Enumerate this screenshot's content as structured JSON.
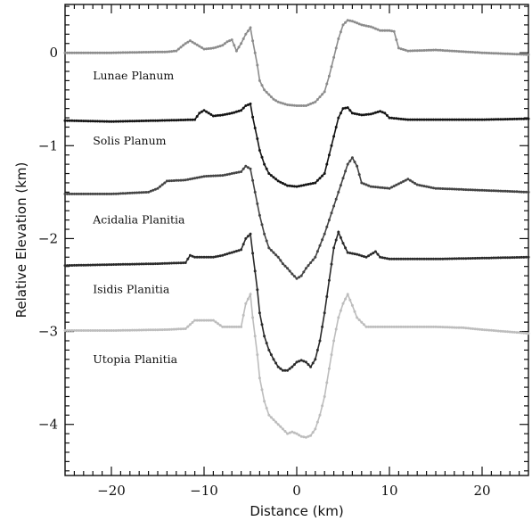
{
  "chart_data": {
    "type": "line",
    "xlabel": "Distance (km)",
    "ylabel": "Relative Elevation (km)",
    "xlim": [
      -25,
      25
    ],
    "ylim": [
      -4.55,
      0.52
    ],
    "xticks": [
      -20,
      -10,
      0,
      10,
      20
    ],
    "yticks": [
      0,
      -1,
      -2,
      -3,
      -4
    ],
    "xtick_labels": [
      "−20",
      "−10",
      "0",
      "10",
      "20"
    ],
    "ytick_labels": [
      "0",
      "−1",
      "−2",
      "−3",
      "−4"
    ],
    "grid": false,
    "series": [
      {
        "name": "Lunae Planum",
        "color": "#8c8c8c",
        "label_at": [
          -22,
          -0.25
        ],
        "points": [
          [
            -25,
            0.0
          ],
          [
            -20,
            0.0
          ],
          [
            -14,
            0.01
          ],
          [
            -13,
            0.02
          ],
          [
            -12,
            0.1
          ],
          [
            -11.5,
            0.13
          ],
          [
            -11,
            0.1
          ],
          [
            -10,
            0.04
          ],
          [
            -9,
            0.05
          ],
          [
            -8,
            0.08
          ],
          [
            -7.5,
            0.12
          ],
          [
            -7,
            0.14
          ],
          [
            -6.5,
            0.02
          ],
          [
            -6,
            0.1
          ],
          [
            -5.5,
            0.2
          ],
          [
            -5,
            0.27
          ],
          [
            -4.7,
            0.1
          ],
          [
            -4.3,
            -0.1
          ],
          [
            -4,
            -0.3
          ],
          [
            -3.5,
            -0.4
          ],
          [
            -3,
            -0.45
          ],
          [
            -2.5,
            -0.5
          ],
          [
            -2,
            -0.53
          ],
          [
            -1,
            -0.56
          ],
          [
            0,
            -0.57
          ],
          [
            1,
            -0.57
          ],
          [
            2,
            -0.53
          ],
          [
            3,
            -0.42
          ],
          [
            3.5,
            -0.25
          ],
          [
            4,
            -0.05
          ],
          [
            4.5,
            0.15
          ],
          [
            5,
            0.3
          ],
          [
            5.5,
            0.35
          ],
          [
            6,
            0.34
          ],
          [
            7,
            0.3
          ],
          [
            8,
            0.28
          ],
          [
            9,
            0.24
          ],
          [
            10,
            0.24
          ],
          [
            10.5,
            0.23
          ],
          [
            11,
            0.05
          ],
          [
            12,
            0.02
          ],
          [
            15,
            0.03
          ],
          [
            20,
            0.0
          ],
          [
            25,
            -0.02
          ]
        ]
      },
      {
        "name": "Solis Planum",
        "color": "#141414",
        "label_at": [
          -22,
          -0.95
        ],
        "points": [
          [
            -25,
            -0.73
          ],
          [
            -20,
            -0.74
          ],
          [
            -15,
            -0.73
          ],
          [
            -11,
            -0.72
          ],
          [
            -10.5,
            -0.65
          ],
          [
            -10,
            -0.62
          ],
          [
            -9.5,
            -0.65
          ],
          [
            -9,
            -0.68
          ],
          [
            -8,
            -0.67
          ],
          [
            -7,
            -0.65
          ],
          [
            -6,
            -0.62
          ],
          [
            -5.5,
            -0.57
          ],
          [
            -5,
            -0.55
          ],
          [
            -4.7,
            -0.72
          ],
          [
            -4.3,
            -0.9
          ],
          [
            -4,
            -1.05
          ],
          [
            -3.5,
            -1.2
          ],
          [
            -3,
            -1.3
          ],
          [
            -2,
            -1.38
          ],
          [
            -1,
            -1.43
          ],
          [
            0,
            -1.44
          ],
          [
            0.5,
            -1.43
          ],
          [
            1,
            -1.42
          ],
          [
            2,
            -1.4
          ],
          [
            3,
            -1.3
          ],
          [
            3.5,
            -1.1
          ],
          [
            4,
            -0.9
          ],
          [
            4.5,
            -0.7
          ],
          [
            5,
            -0.6
          ],
          [
            5.5,
            -0.59
          ],
          [
            6,
            -0.65
          ],
          [
            7,
            -0.67
          ],
          [
            8,
            -0.66
          ],
          [
            9,
            -0.63
          ],
          [
            9.5,
            -0.65
          ],
          [
            10,
            -0.7
          ],
          [
            12,
            -0.72
          ],
          [
            15,
            -0.72
          ],
          [
            20,
            -0.72
          ],
          [
            25,
            -0.71
          ]
        ]
      },
      {
        "name": "Acidalia Planitia",
        "color": "#444444",
        "label_at": [
          -22,
          -1.8
        ],
        "points": [
          [
            -25,
            -1.52
          ],
          [
            -20,
            -1.52
          ],
          [
            -16,
            -1.5
          ],
          [
            -15,
            -1.46
          ],
          [
            -14,
            -1.38
          ],
          [
            -12,
            -1.37
          ],
          [
            -10,
            -1.33
          ],
          [
            -8,
            -1.32
          ],
          [
            -6,
            -1.28
          ],
          [
            -5.5,
            -1.22
          ],
          [
            -5,
            -1.25
          ],
          [
            -4.5,
            -1.5
          ],
          [
            -4,
            -1.75
          ],
          [
            -3.5,
            -1.95
          ],
          [
            -3,
            -2.1
          ],
          [
            -2,
            -2.2
          ],
          [
            -1.5,
            -2.27
          ],
          [
            -1,
            -2.32
          ],
          [
            -0.5,
            -2.38
          ],
          [
            0,
            -2.43
          ],
          [
            0.5,
            -2.4
          ],
          [
            1,
            -2.32
          ],
          [
            2,
            -2.2
          ],
          [
            3,
            -1.95
          ],
          [
            4,
            -1.65
          ],
          [
            5,
            -1.35
          ],
          [
            5.5,
            -1.2
          ],
          [
            6,
            -1.13
          ],
          [
            6.5,
            -1.22
          ],
          [
            7,
            -1.4
          ],
          [
            8,
            -1.44
          ],
          [
            10,
            -1.46
          ],
          [
            12,
            -1.36
          ],
          [
            13,
            -1.42
          ],
          [
            15,
            -1.46
          ],
          [
            20,
            -1.48
          ],
          [
            25,
            -1.5
          ]
        ]
      },
      {
        "name": "Isidis Planitia",
        "color": "#2a2a2a",
        "label_at": [
          -22,
          -2.55
        ],
        "points": [
          [
            -25,
            -2.29
          ],
          [
            -20,
            -2.28
          ],
          [
            -15,
            -2.27
          ],
          [
            -12,
            -2.26
          ],
          [
            -11.5,
            -2.18
          ],
          [
            -11,
            -2.2
          ],
          [
            -9,
            -2.2
          ],
          [
            -8,
            -2.18
          ],
          [
            -7,
            -2.15
          ],
          [
            -6,
            -2.12
          ],
          [
            -5.5,
            -2.0
          ],
          [
            -5,
            -1.95
          ],
          [
            -4.7,
            -2.2
          ],
          [
            -4.3,
            -2.5
          ],
          [
            -4,
            -2.8
          ],
          [
            -3.5,
            -3.05
          ],
          [
            -3,
            -3.2
          ],
          [
            -2.5,
            -3.3
          ],
          [
            -2,
            -3.38
          ],
          [
            -1.5,
            -3.42
          ],
          [
            -1,
            -3.42
          ],
          [
            -0.5,
            -3.38
          ],
          [
            0,
            -3.33
          ],
          [
            0.5,
            -3.31
          ],
          [
            1,
            -3.33
          ],
          [
            1.5,
            -3.38
          ],
          [
            2,
            -3.3
          ],
          [
            2.5,
            -3.1
          ],
          [
            3,
            -2.8
          ],
          [
            3.5,
            -2.45
          ],
          [
            4,
            -2.1
          ],
          [
            4.5,
            -1.93
          ],
          [
            5,
            -2.05
          ],
          [
            5.5,
            -2.15
          ],
          [
            6.5,
            -2.17
          ],
          [
            7.5,
            -2.2
          ],
          [
            8.5,
            -2.14
          ],
          [
            9,
            -2.2
          ],
          [
            10,
            -2.22
          ],
          [
            15,
            -2.22
          ],
          [
            20,
            -2.21
          ],
          [
            25,
            -2.2
          ]
        ]
      },
      {
        "name": "Utopia Planitia",
        "color": "#bdbdbd",
        "label_at": [
          -22,
          -3.3
        ],
        "points": [
          [
            -25,
            -2.99
          ],
          [
            -20,
            -2.99
          ],
          [
            -14,
            -2.98
          ],
          [
            -12,
            -2.97
          ],
          [
            -11,
            -2.88
          ],
          [
            -9,
            -2.88
          ],
          [
            -8,
            -2.95
          ],
          [
            -6,
            -2.95
          ],
          [
            -5.5,
            -2.7
          ],
          [
            -5,
            -2.6
          ],
          [
            -4.7,
            -2.9
          ],
          [
            -4.3,
            -3.2
          ],
          [
            -4,
            -3.5
          ],
          [
            -3.5,
            -3.75
          ],
          [
            -3,
            -3.9
          ],
          [
            -2,
            -4.0
          ],
          [
            -1.5,
            -4.05
          ],
          [
            -1,
            -4.1
          ],
          [
            -0.5,
            -4.08
          ],
          [
            0,
            -4.1
          ],
          [
            0.5,
            -4.13
          ],
          [
            1,
            -4.14
          ],
          [
            1.5,
            -4.12
          ],
          [
            2,
            -4.05
          ],
          [
            2.5,
            -3.9
          ],
          [
            3,
            -3.7
          ],
          [
            3.5,
            -3.4
          ],
          [
            4,
            -3.1
          ],
          [
            4.5,
            -2.85
          ],
          [
            5,
            -2.7
          ],
          [
            5.5,
            -2.6
          ],
          [
            6,
            -2.72
          ],
          [
            6.5,
            -2.85
          ],
          [
            7.5,
            -2.95
          ],
          [
            10,
            -2.95
          ],
          [
            15,
            -2.95
          ],
          [
            18,
            -2.96
          ],
          [
            20,
            -2.98
          ],
          [
            25,
            -3.02
          ]
        ]
      }
    ]
  }
}
